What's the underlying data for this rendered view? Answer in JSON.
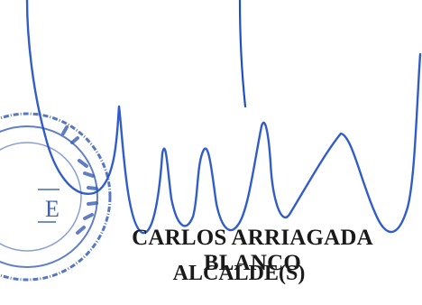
{
  "signature_block": {
    "name": "CARLOS ARRIAGADA BLANCO",
    "title": "ALCALDE(S)"
  },
  "seal": {
    "text": "E",
    "color": "#3a5fb5"
  },
  "colors": {
    "ink": "#1f4fc4",
    "text": "#1a1a1a"
  }
}
